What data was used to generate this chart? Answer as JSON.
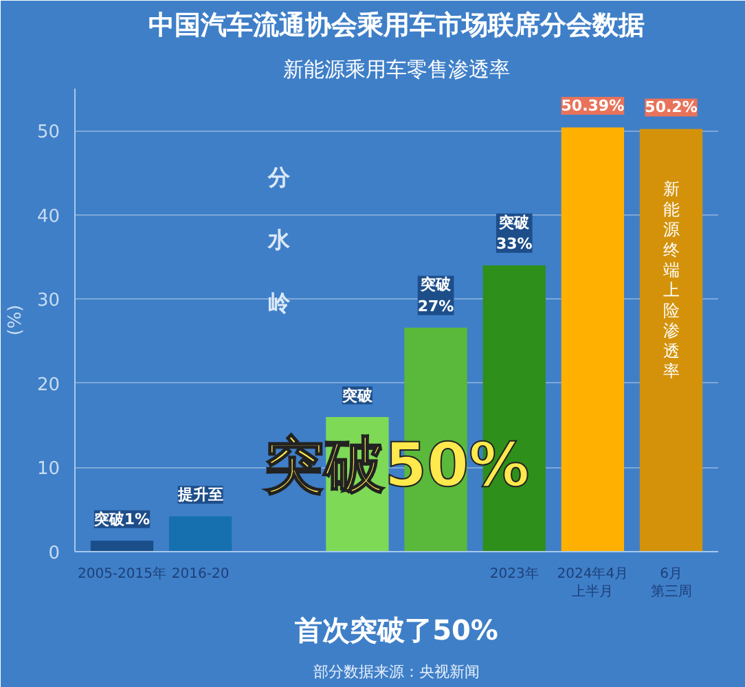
{
  "chart_data": {
    "type": "bar",
    "title": "中国汽车流通协会乘用车市场联席分会数据",
    "subtitle": "新能源乘用车零售渗透率",
    "ylabel": "(%)",
    "categories": [
      "2005-2015年",
      "2016-20",
      null,
      null,
      null,
      "2023年",
      "2024年4月上半月",
      "6月第三周"
    ],
    "values": [
      1.3,
      4.2,
      null,
      16,
      26.6,
      34,
      50.39,
      50.2
    ],
    "colors": [
      "#1a4f8a",
      "#1670b0",
      "#3f7fc8",
      "#7ed957",
      "#5ab83a",
      "#2e8f1a",
      "#ffb000",
      "#d4920a"
    ],
    "value_labels": [
      "突破1%",
      "提升至",
      null,
      "突破",
      "突破\n27%",
      "突破\n33%",
      "50.39%",
      "50.2%"
    ],
    "ylim": [
      0,
      55
    ],
    "yticks": [
      0,
      10,
      20,
      30,
      40,
      50
    ],
    "grid": "y",
    "annotations": [
      "突破50%",
      "首次突破了50%",
      "新能源终端上险渗透率",
      "部分数据来源：央视新闻",
      "分水岭"
    ]
  }
}
